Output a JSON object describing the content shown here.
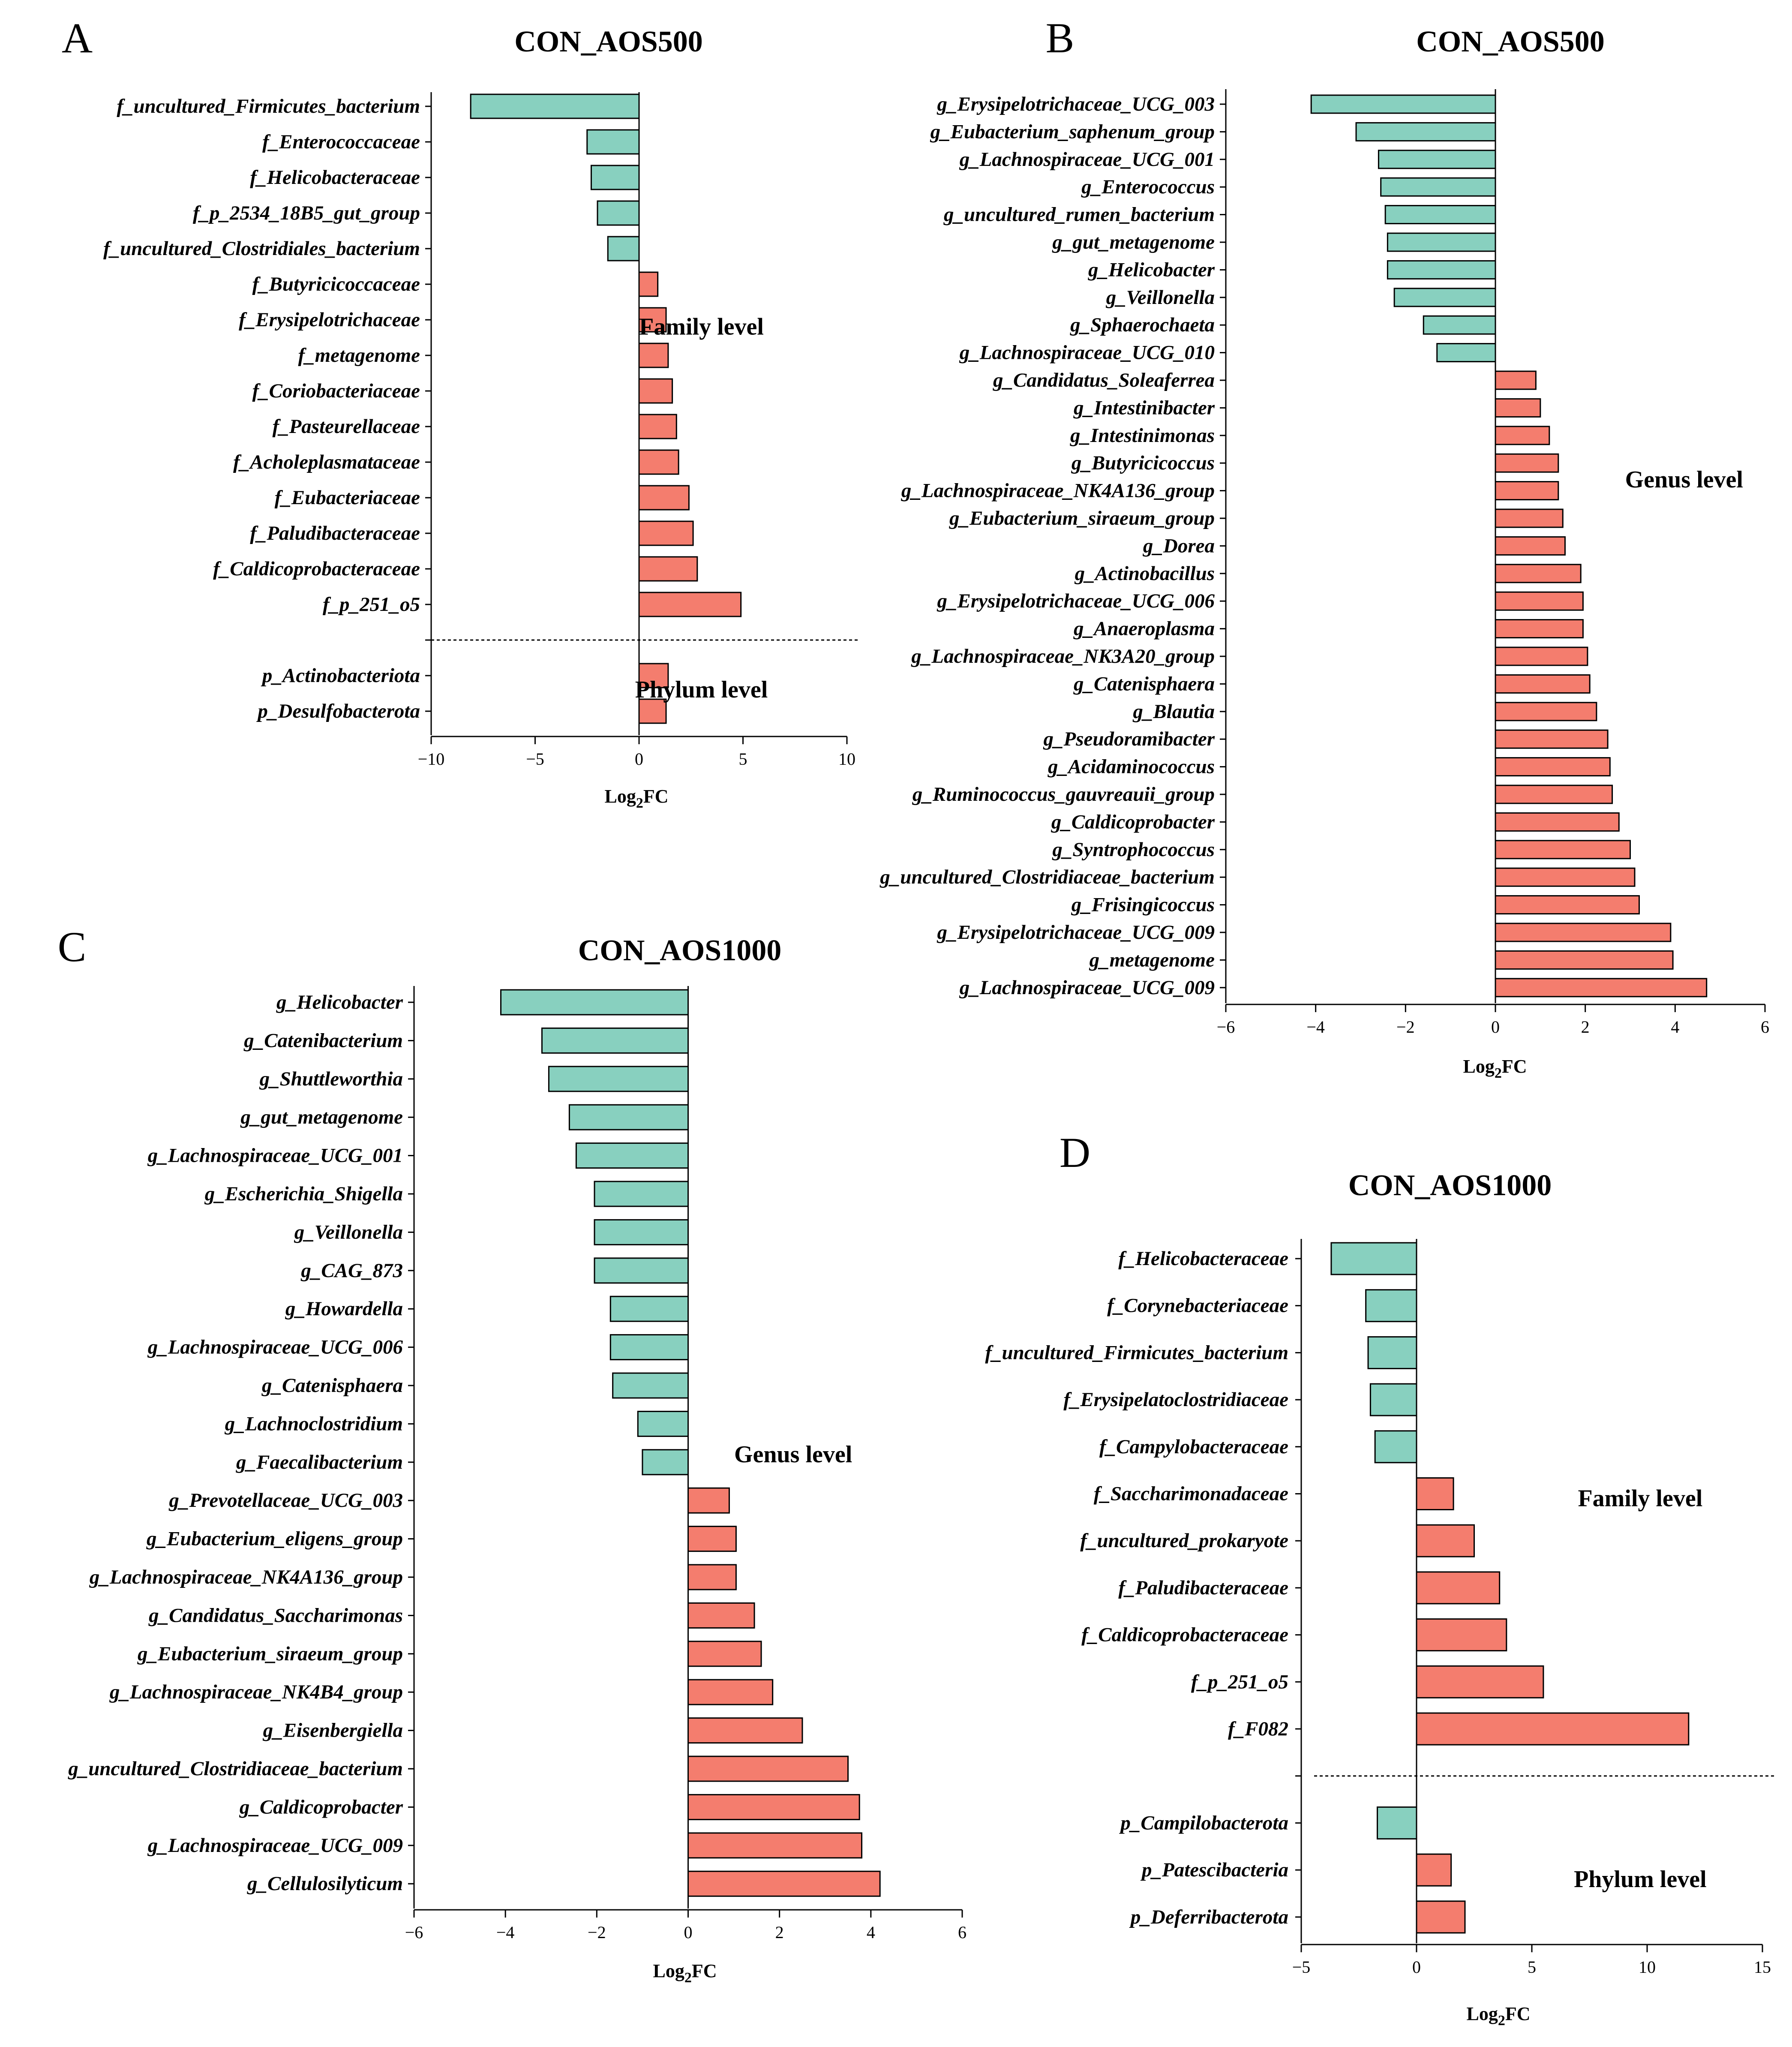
{
  "figure": {
    "letters": [
      "A",
      "B",
      "C",
      "D"
    ]
  },
  "colors": {
    "negative": "#88d0bf",
    "positive": "#f47d6e",
    "stroke": "#000000"
  },
  "chart_data": [
    {
      "panel": "A",
      "type": "bar",
      "orientation": "horizontal",
      "title": "CON_AOS500",
      "xlabel_main": "Log",
      "xlabel_sub": "2",
      "xlabel_tail": "FC",
      "xlim": [
        -10,
        10
      ],
      "xticks": [
        -10,
        -5,
        0,
        5,
        10
      ],
      "xtick_labels": [
        "−10",
        "−5",
        "0",
        "5",
        "10"
      ],
      "separator_after": 14,
      "annotations": [
        {
          "text": "Family level",
          "x": 3,
          "row": 6.2
        },
        {
          "text": "Phylum level",
          "x": 3,
          "row": 16.4
        }
      ],
      "categories": [
        "f_uncultured_Firmicutes_bacterium",
        "f_Enterococcaceae",
        "f_Helicobacteraceae",
        "f_p_2534_18B5_gut_group",
        "f_uncultured_Clostridiales_bacterium",
        "f_Butyricicoccaceae",
        "f_Erysipelotrichaceae",
        "f_metagenome",
        "f_Coriobacteriaceae",
        "f_Pasteurellaceae",
        "f_Acholeplasmataceae",
        "f_Eubacteriaceae",
        "f_Paludibacteraceae",
        "f_Caldicoprobacteraceae",
        "f_p_251_o5",
        "",
        "p_Actinobacteriota",
        "p_Desulfobacterota"
      ],
      "values": [
        -8.1,
        -2.5,
        -2.3,
        -2.0,
        -1.5,
        0.9,
        1.3,
        1.4,
        1.6,
        1.8,
        1.9,
        2.4,
        2.6,
        2.8,
        4.9,
        null,
        1.4,
        1.3
      ]
    },
    {
      "panel": "B",
      "type": "bar",
      "orientation": "horizontal",
      "title": "CON_AOS500",
      "xlabel_main": "Log",
      "xlabel_sub": "2",
      "xlabel_tail": "FC",
      "xlim": [
        -6,
        6
      ],
      "xticks": [
        -6,
        -4,
        -2,
        0,
        2,
        4,
        6
      ],
      "xtick_labels": [
        "−6",
        "−4",
        "−2",
        "0",
        "2",
        "4",
        "6"
      ],
      "annotations": [
        {
          "text": "Genus level",
          "x": 4.2,
          "row": 13.6
        }
      ],
      "categories": [
        "g_Erysipelotrichaceae_UCG_003",
        "g_Eubacterium_saphenum_group",
        "g_Lachnospiraceae_UCG_001",
        "g_Enterococcus",
        "g_uncultured_rumen_bacterium",
        "g_gut_metagenome",
        "g_Helicobacter",
        "g_Veillonella",
        "g_Sphaerochaeta",
        "g_Lachnospiraceae_UCG_010",
        "g_Candidatus_Soleaferrea",
        "g_Intestinibacter",
        "g_Intestinimonas",
        "g_Butyricicoccus",
        "g_Lachnospiraceae_NK4A136_group",
        "g_Eubacterium_siraeum_group",
        "g_Dorea",
        "g_Actinobacillus",
        "g_Erysipelotrichaceae_UCG_006",
        "g_Anaeroplasma",
        "g_Lachnospiraceae_NK3A20_group",
        "g_Catenisphaera",
        "g_Blautia",
        "g_Pseudoramibacter",
        "g_Acidaminococcus",
        "g_Ruminococcus_gauvreauii_group",
        "g_Caldicoprobacter",
        "g_Syntrophococcus",
        "g_uncultured_Clostridiaceae_bacterium",
        "g_Frisingicoccus",
        "g_Erysipelotrichaceae_UCG_009",
        "g_metagenome",
        "g_Lachnospiraceae_UCG_009"
      ],
      "values": [
        -4.1,
        -3.1,
        -2.6,
        -2.55,
        -2.45,
        -2.4,
        -2.4,
        -2.25,
        -1.6,
        -1.3,
        0.9,
        1.0,
        1.2,
        1.4,
        1.4,
        1.5,
        1.55,
        1.9,
        1.95,
        1.95,
        2.05,
        2.1,
        2.25,
        2.5,
        2.55,
        2.6,
        2.75,
        3.0,
        3.1,
        3.2,
        3.9,
        3.95,
        4.7
      ]
    },
    {
      "panel": "C",
      "type": "bar",
      "orientation": "horizontal",
      "title": "CON_AOS1000",
      "xlabel_main": "Log",
      "xlabel_sub": "2",
      "xlabel_tail": "FC",
      "xlim": [
        -6,
        6
      ],
      "xticks": [
        -6,
        -4,
        -2,
        0,
        2,
        4,
        6
      ],
      "xtick_labels": [
        "−6",
        "−4",
        "−2",
        "0",
        "2",
        "4",
        "6"
      ],
      "annotations": [
        {
          "text": "Genus level",
          "x": 2.3,
          "row": 11.8
        }
      ],
      "categories": [
        "g_Helicobacter",
        "g_Catenibacterium",
        "g_Shuttleworthia",
        "g_gut_metagenome",
        "g_Lachnospiraceae_UCG_001",
        "g_Escherichia_Shigella",
        "g_Veillonella",
        "g_CAG_873",
        "g_Howardella",
        "g_Lachnospiraceae_UCG_006",
        "g_Catenisphaera",
        "g_Lachnoclostridium",
        "g_Faecalibacterium",
        "g_Prevotellaceae_UCG_003",
        "g_Eubacterium_eligens_group",
        "g_Lachnospiraceae_NK4A136_group",
        "g_Candidatus_Saccharimonas",
        "g_Eubacterium_siraeum_group",
        "g_Lachnospiraceae_NK4B4_group",
        "g_Eisenbergiella",
        "g_uncultured_Clostridiaceae_bacterium",
        "g_Caldicoprobacter",
        "g_Lachnospiraceae_UCG_009",
        "g_Cellulosilyticum"
      ],
      "values": [
        -4.1,
        -3.2,
        -3.05,
        -2.6,
        -2.45,
        -2.05,
        -2.05,
        -2.05,
        -1.7,
        -1.7,
        -1.65,
        -1.1,
        -1.0,
        0.9,
        1.05,
        1.05,
        1.45,
        1.6,
        1.85,
        2.5,
        3.5,
        3.75,
        3.8,
        4.2
      ]
    },
    {
      "panel": "D",
      "type": "bar",
      "orientation": "horizontal",
      "title": "CON_AOS1000",
      "xlabel_main": "Log",
      "xlabel_sub": "2",
      "xlabel_tail": "FC",
      "xlim": [
        -5,
        15
      ],
      "xticks": [
        -5,
        0,
        5,
        10,
        15
      ],
      "xtick_labels": [
        "−5",
        "0",
        "5",
        "10",
        "15"
      ],
      "separator_after": 10,
      "annotations": [
        {
          "text": "Family level",
          "x": 9.7,
          "row": 5.1
        },
        {
          "text": "Phylum level",
          "x": 9.7,
          "row": 13.2
        }
      ],
      "categories": [
        "f_Helicobacteraceae",
        "f_Corynebacteriaceae",
        "f_uncultured_Firmicutes_bacterium",
        "f_Erysipelatoclostridiaceae",
        "f_Campylobacteraceae",
        "f_Saccharimonadaceae",
        "f_uncultured_prokaryote",
        "f_Paludibacteraceae",
        "f_Caldicoprobacteraceae",
        "f_p_251_o5",
        "f_F082",
        "",
        "p_Campilobacterota",
        "p_Patescibacteria",
        "p_Deferribacterota"
      ],
      "values": [
        -3.7,
        -2.2,
        -2.1,
        -2.0,
        -1.8,
        1.6,
        2.5,
        3.6,
        3.9,
        5.5,
        11.8,
        null,
        -1.7,
        1.5,
        2.1
      ]
    }
  ]
}
